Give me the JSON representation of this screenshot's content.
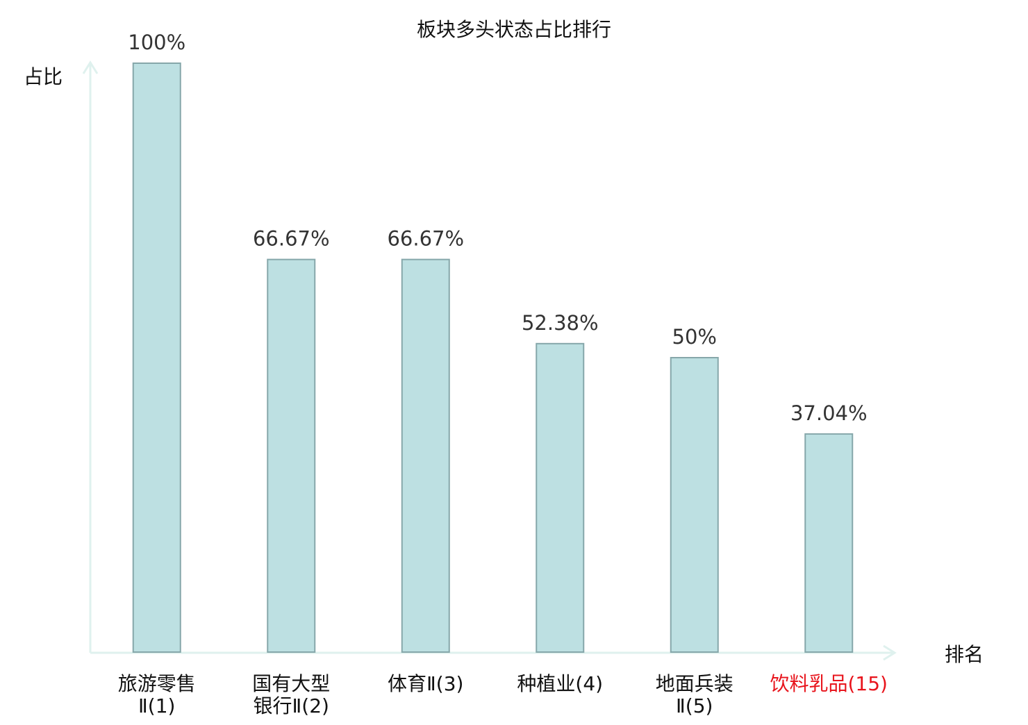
{
  "chart_data": {
    "type": "bar",
    "title": "板块多头状态占比排行",
    "y_label": "占比",
    "x_label": "排名",
    "categories": [
      "旅游零售Ⅱ(1)",
      "国有大型银行Ⅱ(2)",
      "体育Ⅱ(3)",
      "种植业(4)",
      "地面兵装Ⅱ(5)",
      "饮料乳品(15)"
    ],
    "category_colors": [
      "#111111",
      "#111111",
      "#111111",
      "#111111",
      "#111111",
      "#e8141c"
    ],
    "values": [
      100,
      66.67,
      66.67,
      52.38,
      50,
      37.04
    ],
    "value_labels": [
      "100%",
      "66.67%",
      "66.67%",
      "52.38%",
      "50%",
      "37.04%"
    ],
    "color": "#bde0e2",
    "edge_color": "#86a7aa",
    "ylim": [
      0,
      100
    ]
  }
}
